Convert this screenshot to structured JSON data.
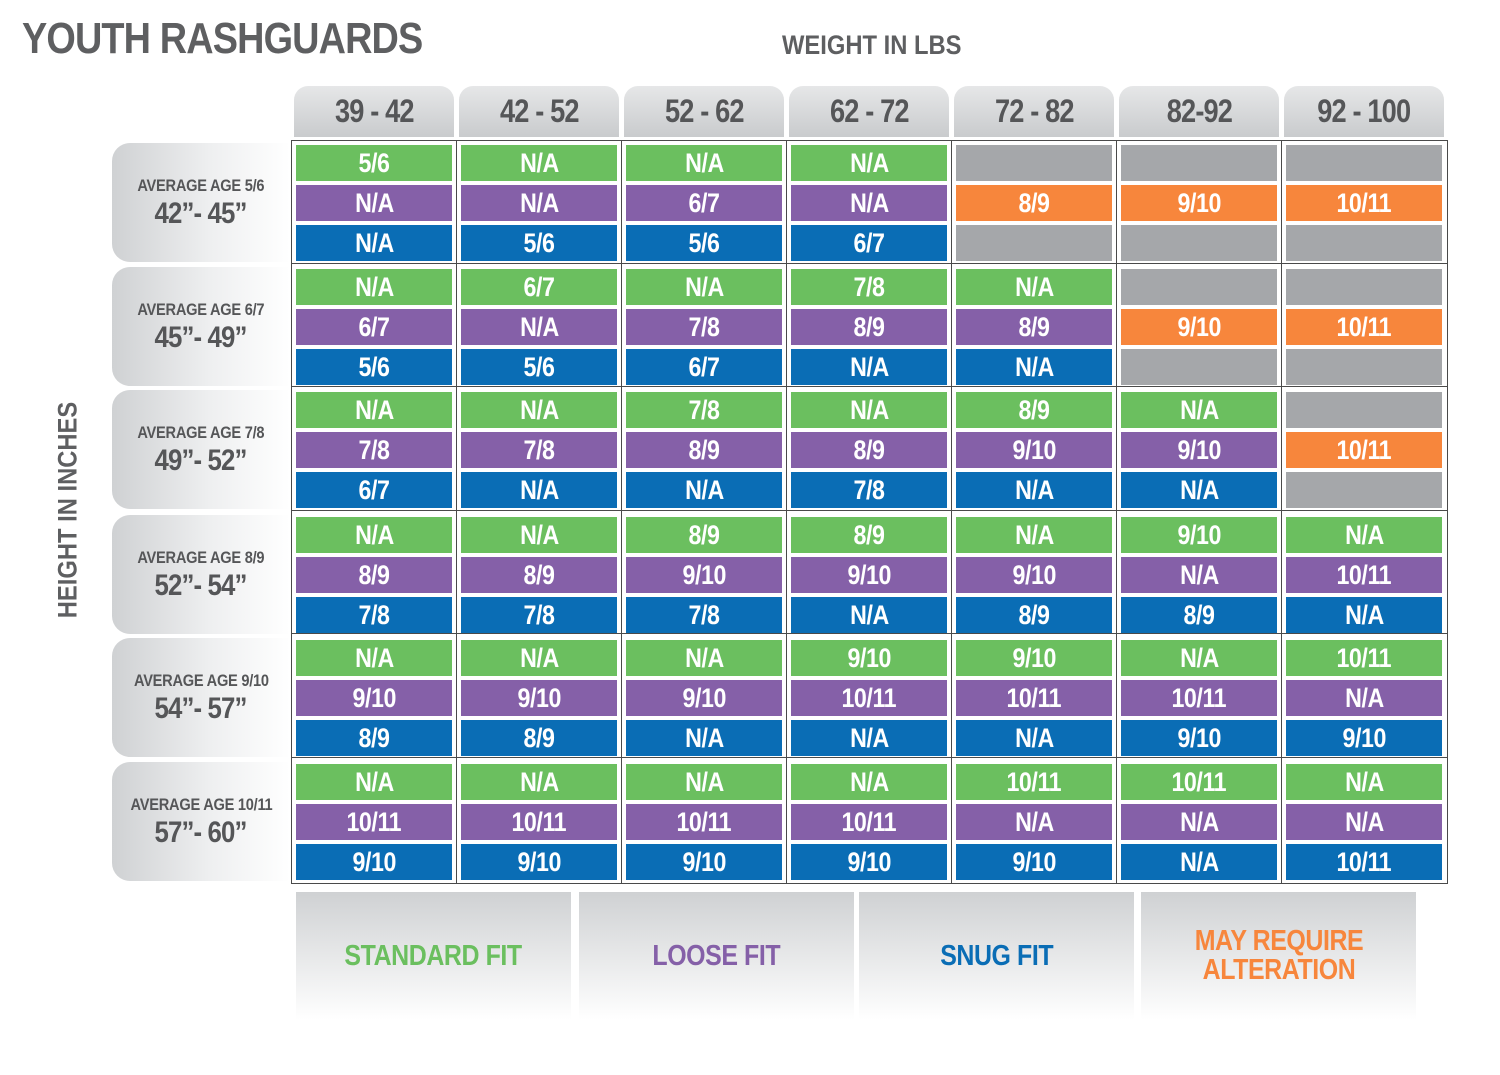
{
  "chart_data": {
    "type": "table",
    "title": "YOUTH RASHGUARDS",
    "xlabel": "WEIGHT IN LBS",
    "ylabel": "HEIGHT IN INCHES",
    "columns": [
      "39 - 42",
      "42 - 52",
      "52 - 62",
      "62 - 72",
      "72 - 82",
      "82-92",
      "92 - 100"
    ],
    "rows": [
      {
        "age": "AVERAGE AGE 5/6",
        "height": "42”- 45”",
        "standard": [
          "5/6",
          "N/A",
          "N/A",
          "N/A",
          "",
          "",
          ""
        ],
        "loose": [
          "N/A",
          "N/A",
          "6/7",
          "N/A",
          "8/9",
          "9/10",
          "10/11"
        ],
        "snug": [
          "N/A",
          "5/6",
          "5/6",
          "6/7",
          "",
          "",
          ""
        ]
      },
      {
        "age": "AVERAGE AGE 6/7",
        "height": "45”- 49”",
        "standard": [
          "N/A",
          "6/7",
          "N/A",
          "7/8",
          "N/A",
          "",
          ""
        ],
        "loose": [
          "6/7",
          "N/A",
          "7/8",
          "8/9",
          "8/9",
          "9/10",
          "10/11"
        ],
        "snug": [
          "5/6",
          "5/6",
          "6/7",
          "N/A",
          "N/A",
          "",
          ""
        ]
      },
      {
        "age": "AVERAGE AGE 7/8",
        "height": "49”- 52”",
        "standard": [
          "N/A",
          "N/A",
          "7/8",
          "N/A",
          "8/9",
          "N/A",
          ""
        ],
        "loose": [
          "7/8",
          "7/8",
          "8/9",
          "8/9",
          "9/10",
          "9/10",
          "10/11"
        ],
        "snug": [
          "6/7",
          "N/A",
          "N/A",
          "7/8",
          "N/A",
          "N/A",
          ""
        ]
      },
      {
        "age": "AVERAGE AGE 8/9",
        "height": "52”- 54”",
        "standard": [
          "N/A",
          "N/A",
          "8/9",
          "8/9",
          "N/A",
          "9/10",
          "N/A"
        ],
        "loose": [
          "8/9",
          "8/9",
          "9/10",
          "9/10",
          "9/10",
          "N/A",
          "10/11"
        ],
        "snug": [
          "7/8",
          "7/8",
          "7/8",
          "N/A",
          "8/9",
          "8/9",
          "N/A"
        ]
      },
      {
        "age": "AVERAGE AGE 9/10",
        "height": "54”- 57”",
        "standard": [
          "N/A",
          "N/A",
          "N/A",
          "9/10",
          "9/10",
          "N/A",
          "10/11"
        ],
        "loose": [
          "9/10",
          "9/10",
          "9/10",
          "10/11",
          "10/11",
          "10/11",
          "N/A"
        ],
        "snug": [
          "8/9",
          "8/9",
          "N/A",
          "N/A",
          "N/A",
          "9/10",
          "9/10"
        ]
      },
      {
        "age": "AVERAGE AGE 10/11",
        "height": "57”- 60”",
        "standard": [
          "N/A",
          "N/A",
          "N/A",
          "N/A",
          "10/11",
          "10/11",
          "N/A"
        ],
        "loose": [
          "10/11",
          "10/11",
          "10/11",
          "10/11",
          "N/A",
          "N/A",
          "N/A"
        ],
        "snug": [
          "9/10",
          "9/10",
          "9/10",
          "9/10",
          "9/10",
          "N/A",
          "10/11"
        ]
      }
    ],
    "alteration_cells": [
      {
        "row": 0,
        "col": 4
      },
      {
        "row": 0,
        "col": 5
      },
      {
        "row": 0,
        "col": 6
      },
      {
        "row": 1,
        "col": 5
      },
      {
        "row": 1,
        "col": 6
      },
      {
        "row": 2,
        "col": 6
      }
    ],
    "legend": [
      {
        "key": "standard",
        "label": "STANDARD FIT",
        "color": "#6bbf5f"
      },
      {
        "key": "loose",
        "label": "LOOSE FIT",
        "color": "#8560a8"
      },
      {
        "key": "snug",
        "label": "SNUG FIT",
        "color": "#0a6db5"
      },
      {
        "key": "alteration",
        "label": "MAY REQUIRE\nALTERATION",
        "color": "#f7863c"
      }
    ],
    "colors": {
      "standard": "#6bbf5f",
      "loose": "#8560a8",
      "snug": "#0a6db5",
      "alteration": "#f7863c",
      "empty": "#a5a7aa"
    }
  }
}
